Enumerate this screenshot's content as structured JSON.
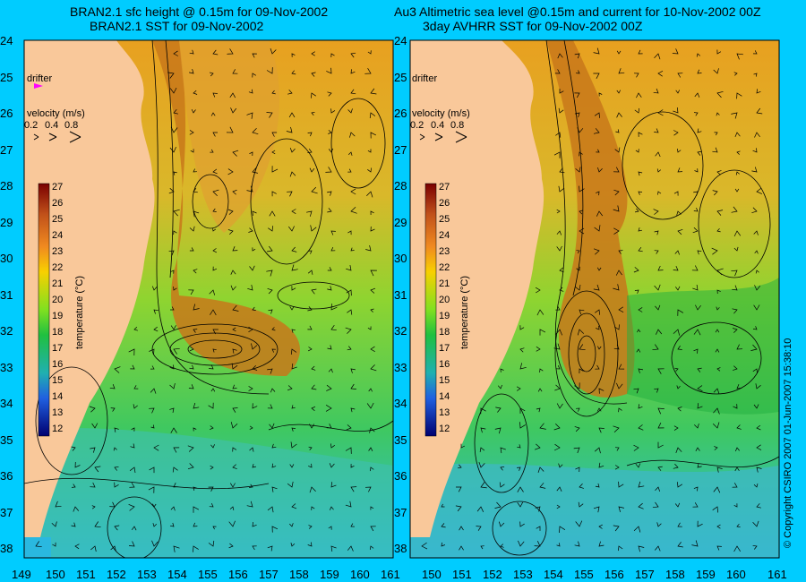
{
  "panels": [
    {
      "title_line1": "BRAN2.1 sfc height @ 0.15m for 09-Nov-2002",
      "title_line2": "BRAN2.1 SST for 09-Nov-2002"
    },
    {
      "title_line1": "Au3 Altimetric sea level  @0.15m and current for 10-Nov-2002 00Z",
      "title_line2": "3day AVHRR SST for 09-Nov-2002 00Z"
    }
  ],
  "y_ticks": [
    "24",
    "25",
    "26",
    "27",
    "28",
    "29",
    "30",
    "31",
    "32",
    "33",
    "34",
    "35",
    "36",
    "37",
    "38"
  ],
  "x_ticks": [
    "149",
    "150",
    "151",
    "152",
    "153",
    "154",
    "155",
    "156",
    "157",
    "158",
    "159",
    "160",
    "161"
  ],
  "drifter_label": "drifter",
  "velocity_label": "velocity (m/s)",
  "velocity_scale": [
    "0.2",
    "0.4",
    "0.8"
  ],
  "colorbar": {
    "label": "temperature (°C)",
    "ticks": [
      "27",
      "26",
      "25",
      "24",
      "23",
      "22",
      "21",
      "20",
      "19",
      "18",
      "17",
      "16",
      "15",
      "14",
      "13",
      "12"
    ]
  },
  "copyright": "© Copyright CSIRO 2007   01-Jun-2007 15:38:10",
  "colors": {
    "background": "#00ccff",
    "land": "#f9c89a",
    "warm": "#cc6a10",
    "mid": "#8fd430",
    "cool": "#2ab8e0",
    "drifter": "#ff00ff"
  }
}
